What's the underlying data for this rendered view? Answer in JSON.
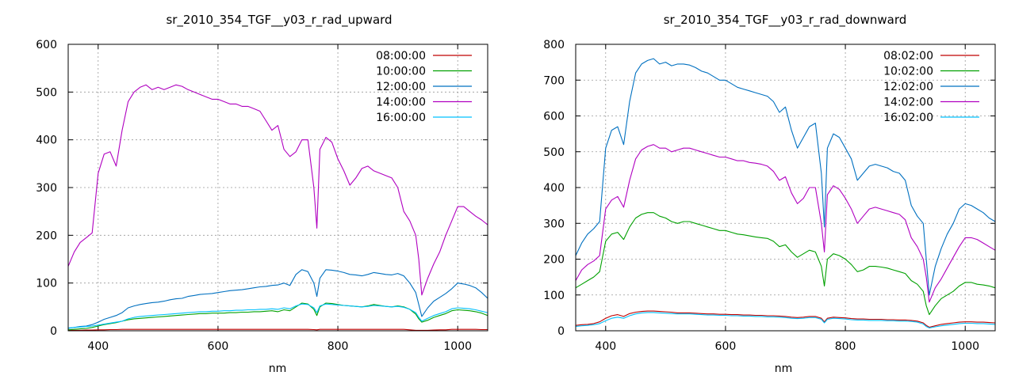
{
  "colors": {
    "08": "#c00000",
    "10": "#00a000",
    "12": "#0070c0",
    "14": "#b000c0",
    "16": "#00c0ff"
  },
  "chart_data": [
    {
      "type": "line",
      "title": "sr_2010_354_TGF__y03_r_rad_upward",
      "xlabel": "nm",
      "ylabel": "",
      "xlim": [
        350,
        1050
      ],
      "ylim": [
        0,
        600
      ],
      "xticks": [
        400,
        600,
        800,
        1000
      ],
      "yticks": [
        0,
        100,
        200,
        300,
        400,
        500,
        600
      ],
      "grid": true,
      "legend_position": "top-right",
      "x": [
        350,
        360,
        370,
        380,
        390,
        400,
        410,
        420,
        430,
        440,
        450,
        460,
        470,
        480,
        490,
        500,
        510,
        520,
        530,
        540,
        550,
        560,
        570,
        580,
        590,
        600,
        610,
        620,
        630,
        640,
        650,
        660,
        670,
        680,
        690,
        700,
        710,
        720,
        730,
        740,
        750,
        760,
        765,
        770,
        780,
        790,
        800,
        810,
        820,
        830,
        840,
        850,
        860,
        870,
        880,
        890,
        900,
        910,
        920,
        930,
        935,
        940,
        950,
        960,
        970,
        980,
        990,
        1000,
        1010,
        1020,
        1030,
        1040,
        1050
      ],
      "series": [
        {
          "name": "08:00:00",
          "color_key": "08",
          "values": [
            1,
            1,
            1,
            1.5,
            1.5,
            2,
            2,
            2.5,
            2.5,
            3,
            3,
            3,
            3,
            3,
            3,
            3,
            3,
            3,
            3,
            3,
            3,
            3,
            3,
            3,
            3,
            3,
            3,
            3,
            3,
            3,
            3,
            3,
            3,
            3,
            3,
            3,
            3,
            3,
            3,
            3,
            3,
            2.5,
            2,
            3,
            3,
            3,
            3,
            3,
            3,
            3,
            3,
            3,
            3,
            3,
            3,
            3,
            3,
            3,
            2,
            1,
            1,
            1,
            1,
            1.5,
            2,
            2,
            3,
            3,
            3,
            3,
            3,
            2.5,
            2.5
          ]
        },
        {
          "name": "10:00:00",
          "color_key": "10",
          "values": [
            2,
            3,
            4,
            5,
            7,
            10,
            13,
            15,
            17,
            20,
            23,
            25,
            26,
            27,
            28,
            29,
            30,
            31,
            32,
            33,
            34,
            35,
            36,
            36,
            37,
            37,
            37,
            38,
            38,
            39,
            39,
            40,
            40,
            41,
            42,
            40,
            44,
            42,
            50,
            58,
            56,
            45,
            32,
            50,
            58,
            57,
            55,
            53,
            52,
            51,
            50,
            52,
            55,
            53,
            51,
            50,
            52,
            50,
            45,
            35,
            25,
            18,
            22,
            28,
            32,
            36,
            42,
            44,
            43,
            42,
            40,
            37,
            32
          ]
        },
        {
          "name": "12:00:00",
          "color_key": "12",
          "values": [
            5,
            7,
            9,
            10,
            13,
            18,
            24,
            28,
            32,
            38,
            48,
            52,
            55,
            57,
            59,
            60,
            62,
            65,
            67,
            68,
            72,
            74,
            76,
            77,
            78,
            80,
            82,
            84,
            85,
            86,
            88,
            90,
            92,
            93,
            95,
            96,
            100,
            95,
            118,
            128,
            124,
            100,
            72,
            110,
            128,
            127,
            125,
            122,
            118,
            117,
            115,
            118,
            122,
            120,
            118,
            117,
            120,
            115,
            100,
            80,
            55,
            30,
            48,
            62,
            70,
            78,
            88,
            100,
            98,
            95,
            90,
            80,
            68
          ]
        },
        {
          "name": "14:00:00",
          "color_key": "14",
          "values": [
            135,
            165,
            185,
            195,
            205,
            330,
            370,
            375,
            345,
            420,
            480,
            500,
            510,
            515,
            505,
            510,
            505,
            510,
            515,
            512,
            505,
            500,
            495,
            490,
            485,
            485,
            480,
            475,
            475,
            470,
            470,
            465,
            460,
            440,
            420,
            430,
            380,
            365,
            375,
            400,
            400,
            300,
            215,
            380,
            405,
            395,
            360,
            335,
            305,
            320,
            340,
            345,
            335,
            330,
            325,
            320,
            300,
            250,
            230,
            200,
            150,
            75,
            110,
            140,
            165,
            200,
            230,
            260,
            260,
            250,
            240,
            232,
            222
          ]
        },
        {
          "name": "16:00:00",
          "color_key": "16",
          "values": [
            6,
            7,
            8,
            9,
            10,
            12,
            14,
            16,
            18,
            20,
            25,
            28,
            30,
            31,
            32,
            33,
            34,
            35,
            36,
            37,
            38,
            39,
            40,
            40,
            41,
            41,
            42,
            42,
            43,
            43,
            44,
            44,
            45,
            45,
            46,
            45,
            48,
            46,
            52,
            56,
            55,
            48,
            38,
            52,
            56,
            55,
            54,
            53,
            52,
            51,
            50,
            51,
            53,
            52,
            51,
            50,
            51,
            49,
            45,
            38,
            28,
            20,
            26,
            32,
            36,
            40,
            46,
            48,
            47,
            46,
            44,
            41,
            38
          ]
        }
      ]
    },
    {
      "type": "line",
      "title": "sr_2010_354_TGF__y03_r_rad_downward",
      "xlabel": "nm",
      "ylabel": "",
      "xlim": [
        350,
        1050
      ],
      "ylim": [
        0,
        800
      ],
      "xticks": [
        400,
        600,
        800,
        1000
      ],
      "yticks": [
        0,
        100,
        200,
        300,
        400,
        500,
        600,
        700,
        800
      ],
      "grid": true,
      "legend_position": "top-right",
      "x": [
        350,
        360,
        370,
        380,
        390,
        400,
        410,
        420,
        430,
        440,
        450,
        460,
        470,
        480,
        490,
        500,
        510,
        520,
        530,
        540,
        550,
        560,
        570,
        580,
        590,
        600,
        610,
        620,
        630,
        640,
        650,
        660,
        670,
        680,
        690,
        700,
        710,
        720,
        730,
        740,
        750,
        760,
        765,
        770,
        780,
        790,
        800,
        810,
        820,
        830,
        840,
        850,
        860,
        870,
        880,
        890,
        900,
        910,
        920,
        930,
        935,
        940,
        950,
        960,
        970,
        980,
        990,
        1000,
        1010,
        1020,
        1030,
        1040,
        1050
      ],
      "series": [
        {
          "name": "08:02:00",
          "color_key": "08",
          "values": [
            15,
            17,
            18,
            20,
            25,
            35,
            42,
            45,
            40,
            48,
            52,
            54,
            55,
            55,
            54,
            53,
            52,
            50,
            50,
            50,
            49,
            48,
            47,
            47,
            46,
            46,
            45,
            45,
            44,
            44,
            43,
            43,
            42,
            42,
            41,
            40,
            38,
            37,
            38,
            40,
            40,
            35,
            25,
            35,
            38,
            37,
            36,
            34,
            33,
            33,
            32,
            32,
            32,
            31,
            31,
            30,
            30,
            29,
            27,
            22,
            15,
            10,
            14,
            18,
            20,
            22,
            24,
            25,
            25,
            24,
            24,
            23,
            22
          ]
        },
        {
          "name": "10:02:00",
          "color_key": "10",
          "values": [
            120,
            130,
            140,
            150,
            165,
            250,
            270,
            275,
            255,
            290,
            315,
            325,
            330,
            330,
            320,
            315,
            305,
            300,
            305,
            305,
            300,
            295,
            290,
            285,
            280,
            280,
            275,
            270,
            268,
            265,
            262,
            260,
            258,
            250,
            235,
            240,
            220,
            205,
            215,
            225,
            220,
            180,
            125,
            200,
            215,
            210,
            200,
            185,
            165,
            170,
            180,
            180,
            178,
            175,
            170,
            165,
            160,
            140,
            130,
            110,
            70,
            45,
            70,
            90,
            100,
            110,
            125,
            135,
            135,
            130,
            128,
            125,
            120
          ]
        },
        {
          "name": "12:02:00",
          "color_key": "12",
          "values": [
            210,
            245,
            270,
            285,
            305,
            510,
            560,
            570,
            520,
            640,
            720,
            745,
            755,
            760,
            745,
            750,
            740,
            745,
            745,
            742,
            735,
            725,
            720,
            710,
            700,
            700,
            690,
            680,
            675,
            670,
            665,
            660,
            655,
            640,
            610,
            625,
            560,
            510,
            540,
            570,
            580,
            440,
            290,
            510,
            550,
            540,
            510,
            480,
            420,
            440,
            460,
            465,
            460,
            455,
            445,
            440,
            420,
            350,
            320,
            300,
            200,
            100,
            180,
            230,
            270,
            300,
            340,
            355,
            350,
            340,
            330,
            315,
            305
          ]
        },
        {
          "name": "14:02:00",
          "color_key": "14",
          "values": [
            140,
            170,
            185,
            195,
            210,
            340,
            365,
            375,
            345,
            420,
            480,
            505,
            515,
            520,
            510,
            510,
            500,
            505,
            510,
            510,
            505,
            500,
            495,
            490,
            485,
            485,
            480,
            475,
            475,
            470,
            468,
            465,
            460,
            445,
            420,
            430,
            385,
            355,
            370,
            400,
            400,
            300,
            220,
            380,
            405,
            395,
            370,
            340,
            300,
            320,
            340,
            345,
            340,
            335,
            330,
            325,
            310,
            260,
            235,
            200,
            150,
            80,
            120,
            145,
            175,
            205,
            235,
            260,
            260,
            255,
            245,
            235,
            225
          ]
        },
        {
          "name": "16:02:00",
          "color_key": "16",
          "values": [
            12,
            14,
            15,
            17,
            20,
            28,
            35,
            38,
            35,
            42,
            47,
            50,
            51,
            51,
            50,
            49,
            48,
            47,
            47,
            47,
            46,
            45,
            44,
            44,
            43,
            43,
            42,
            42,
            41,
            41,
            40,
            40,
            39,
            39,
            38,
            37,
            35,
            34,
            35,
            37,
            37,
            32,
            22,
            32,
            35,
            34,
            33,
            31,
            30,
            30,
            29,
            29,
            29,
            28,
            28,
            27,
            27,
            26,
            24,
            19,
            12,
            8,
            11,
            14,
            16,
            18,
            20,
            21,
            21,
            20,
            20,
            19,
            18
          ]
        }
      ]
    }
  ]
}
